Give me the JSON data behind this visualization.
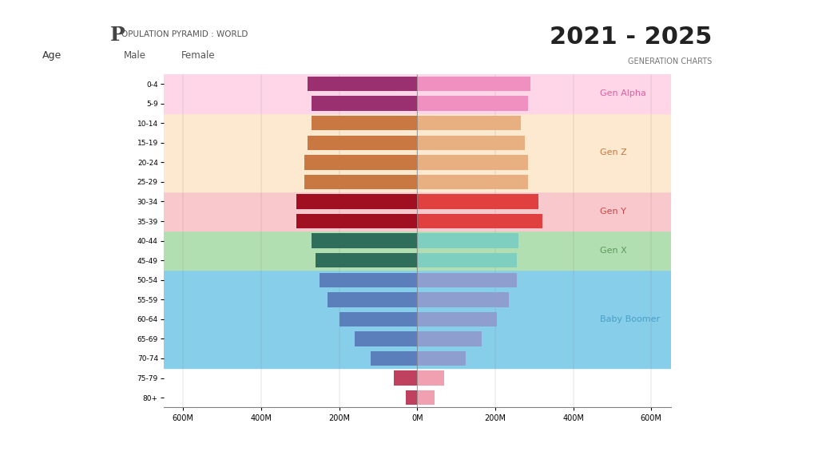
{
  "title_left": "OPULATION PYRAMID : WORLD",
  "title_left_P": "P",
  "title_right": "2021 - 2025",
  "subtitle_right": "GENERATION CHARTS",
  "age_groups": [
    "80+",
    "75-79",
    "70-74",
    "65-69",
    "60-64",
    "55-59",
    "50-54",
    "45-49",
    "40-44",
    "35-39",
    "30-34",
    "25-29",
    "20-24",
    "15-19",
    "10-14",
    "5-9",
    "0-4"
  ],
  "male_values": [
    30,
    60,
    120,
    160,
    200,
    230,
    250,
    260,
    270,
    310,
    310,
    290,
    290,
    280,
    270,
    270,
    280
  ],
  "female_values": [
    45,
    70,
    125,
    165,
    205,
    235,
    255,
    255,
    260,
    320,
    310,
    285,
    285,
    275,
    265,
    285,
    290
  ],
  "xlim": 650,
  "xlabel_ticks": [
    -600,
    -400,
    -200,
    0,
    200,
    400,
    600
  ],
  "xlabel_labels": [
    "600M",
    "400M",
    "200M",
    "0M",
    "200M",
    "400M",
    "600M"
  ],
  "generations": [
    {
      "name": "Baby Boomer",
      "ages": [
        "70-74",
        "65-69",
        "60-64",
        "55-59",
        "50-54"
      ],
      "bg_color": "#87ceeb",
      "label_color": "#4a9fc4",
      "bar_male": "#5b7fba",
      "bar_female": "#8e9fcf"
    },
    {
      "name": "Gen X",
      "ages": [
        "45-49",
        "40-44"
      ],
      "bg_color": "#b2dfb2",
      "label_color": "#5a9a5a",
      "bar_male": "#2e6e5a",
      "bar_female": "#7ecfbf"
    },
    {
      "name": "Gen Y",
      "ages": [
        "35-39",
        "30-34"
      ],
      "bg_color": "#f9c8cc",
      "label_color": "#cc4444",
      "bar_male": "#a01020",
      "bar_female": "#e04040"
    },
    {
      "name": "Gen Z",
      "ages": [
        "25-29",
        "20-24",
        "15-19",
        "10-14"
      ],
      "bg_color": "#fde8d0",
      "label_color": "#c87840",
      "bar_male": "#c87840",
      "bar_female": "#e8b080"
    },
    {
      "name": "Gen Alpha",
      "ages": [
        "5-9",
        "0-4"
      ],
      "bg_color": "#ffd6e8",
      "label_color": "#e060a0",
      "bar_male": "#9b3070",
      "bar_female": "#f090c0"
    }
  ],
  "above_male_bar": "#c04060",
  "above_female_bar": "#f0a0b0",
  "bar_height": 0.75,
  "ylabel": "Age",
  "male_label": "Male",
  "female_label": "Female",
  "fig_bg": "#ffffff",
  "plot_bg": "#ffffff"
}
